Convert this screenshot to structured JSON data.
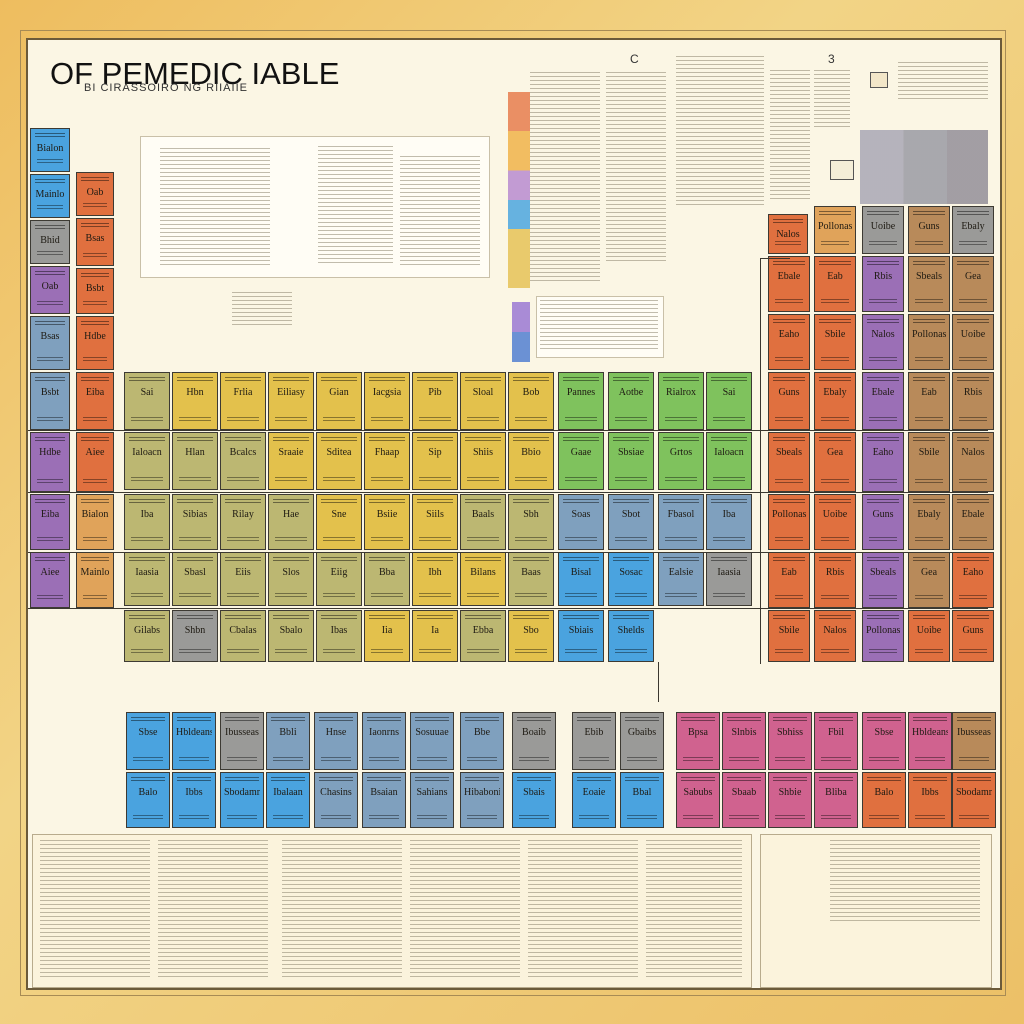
{
  "poster": {
    "title": "OF PEMEDIC IABLE",
    "subtitle": "BI CIRASSOIRO NG RIIAIIE",
    "column_marks": [
      "C",
      "3"
    ]
  },
  "colors": {
    "blue": "#4aa3df",
    "orange": "#e0703f",
    "purple": "#9b6fb6",
    "yellow": "#e3c14c",
    "olive": "#bcb772",
    "green": "#7fc25d",
    "steel": "#7fa0be",
    "gray": "#9a9a98",
    "pink": "#d0628f",
    "brown": "#b88a5a",
    "tan": "#e0a35a"
  },
  "main_rows": [
    [
      "Sai",
      "Hbn",
      "Frlia",
      "Eiliasy",
      "Gian",
      "Iacgsia",
      "Pib",
      "Sloal",
      "Bob",
      "Pannes",
      "Aotbe",
      "Rialrox"
    ],
    [
      "Ialoacn",
      "Hlan",
      "Bcalcs",
      "Sraaie",
      "Sditea",
      "Fhaap",
      "Sip",
      "Shiis",
      "Bbio",
      "Gaae",
      "Sbsiae",
      "Grtos"
    ],
    [
      "Iba",
      "Sibias",
      "Rilay",
      "Hae",
      "Sne",
      "Bsiie",
      "Siils",
      "Baals",
      "Sbh",
      "Soas",
      "Sbot",
      "Fbasol"
    ],
    [
      "Iaasia",
      "Sbasl",
      "Eiis",
      "Slos",
      "Eiig",
      "Bba",
      "Ibh",
      "Bilans",
      "Baas",
      "Bisal",
      "Sosac",
      "Ealsie"
    ],
    [
      "Gilabs",
      "Shbn",
      "Cbalas",
      "Sbalo",
      "Ibas",
      "Iia",
      "Ia",
      "Ebba",
      "Sbo",
      "Sbiais",
      "Shelds",
      "Ibaalb"
    ]
  ],
  "left_cells": [
    "Bialon",
    "Mainlo",
    "Bhid",
    "Oab",
    "Bsas",
    "Bsbt",
    "Hdbe",
    "Eiba",
    "Aiee"
  ],
  "right_cells": [
    "Nalos",
    "Pollonas",
    "Uoibe",
    "Guns",
    "Ebaly",
    "Ebale",
    "Eab",
    "Rbis",
    "Sbeals",
    "Gea",
    "Eaho",
    "Sbile"
  ],
  "lower_rows": [
    [
      "Sbse",
      "Hbldeans",
      "Ibusseas",
      "Bbli",
      "Hnse",
      "Iaonrns",
      "Sosuuae",
      "Bbe",
      "Boaib",
      "Ebib",
      "Gbaibs",
      "Bpsa",
      "Slnbis",
      "Sbhiss",
      "Fbil"
    ],
    [
      "Balo",
      "Ibbs",
      "Sbodamn",
      "Ibalaan",
      "Chasins",
      "Bsaian",
      "Sahians",
      "Hibabonie",
      "Sbais",
      "Eoaie",
      "Bbal",
      "Sabubs",
      "Sbaab",
      "Shbie",
      "Bliba"
    ]
  ]
}
